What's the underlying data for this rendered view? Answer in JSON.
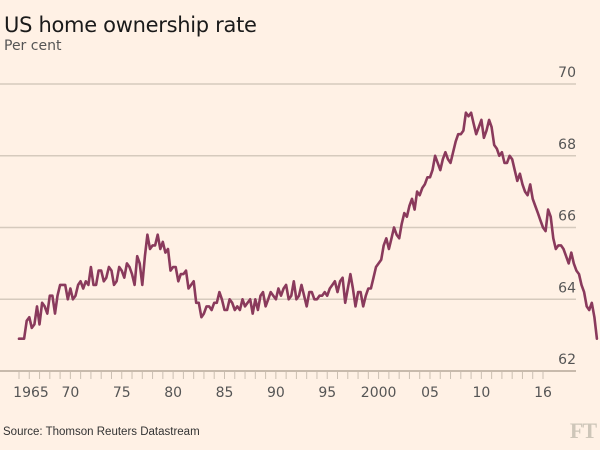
{
  "chart_data": {
    "type": "line",
    "title": "US home ownership rate",
    "subtitle": "Per cent",
    "xlabel": "",
    "ylabel": "Per cent",
    "ylim": [
      62,
      70
    ],
    "xlim": [
      1965,
      2016.5
    ],
    "grid": true,
    "y_ticks": [
      62,
      64,
      66,
      68,
      70
    ],
    "y_tick_labels": [
      "62",
      "64",
      "66",
      "68",
      "70"
    ],
    "x_tick_years": [
      1965,
      1970,
      1975,
      1980,
      1985,
      1990,
      1995,
      2000,
      2005,
      2010,
      2016
    ],
    "x_tick_labels": [
      "1965",
      "70",
      "75",
      "80",
      "85",
      "90",
      "95",
      "2000",
      "05",
      "10",
      "16"
    ],
    "color": "#8a3a5c",
    "series": [
      {
        "name": "US home ownership rate",
        "frequency": "quarterly",
        "start": 1965,
        "values": [
          62.9,
          62.9,
          62.9,
          63.4,
          63.5,
          63.2,
          63.3,
          63.8,
          63.3,
          63.9,
          63.8,
          63.6,
          64.1,
          64.1,
          63.6,
          64.1,
          64.4,
          64.4,
          64.4,
          64.0,
          64.3,
          64.0,
          64.1,
          64.4,
          64.5,
          64.3,
          64.5,
          64.4,
          64.9,
          64.4,
          64.4,
          64.8,
          64.8,
          64.5,
          64.6,
          64.9,
          64.8,
          64.4,
          64.5,
          64.9,
          64.8,
          64.6,
          65.0,
          64.9,
          64.7,
          64.4,
          65.2,
          65.0,
          64.4,
          65.2,
          65.8,
          65.4,
          65.5,
          65.5,
          65.8,
          65.4,
          65.6,
          65.3,
          65.4,
          64.8,
          64.9,
          64.9,
          64.5,
          64.7,
          64.7,
          64.8,
          64.3,
          64.4,
          64.5,
          63.9,
          63.9,
          63.5,
          63.6,
          63.8,
          63.8,
          63.7,
          63.9,
          63.9,
          64.2,
          64.0,
          63.7,
          63.7,
          64.0,
          63.9,
          63.7,
          63.8,
          63.7,
          64.0,
          63.8,
          63.9,
          64.0,
          63.6,
          64.0,
          63.7,
          64.1,
          64.2,
          63.8,
          64.0,
          64.2,
          64.1,
          64.0,
          64.3,
          64.1,
          64.3,
          64.4,
          64.0,
          64.1,
          64.5,
          64.0,
          64.1,
          64.4,
          64.1,
          63.8,
          64.2,
          64.2,
          64.0,
          64.0,
          64.1,
          64.1,
          64.2,
          64.1,
          64.3,
          64.4,
          64.5,
          64.2,
          64.5,
          64.6,
          63.9,
          64.3,
          64.7,
          64.3,
          63.8,
          64.2,
          64.2,
          63.8,
          64.1,
          64.3,
          64.3,
          64.6,
          64.9,
          65.0,
          65.1,
          65.5,
          65.7,
          65.4,
          65.7,
          66.0,
          65.8,
          65.7,
          66.1,
          66.4,
          66.3,
          66.6,
          66.8,
          66.5,
          67.0,
          66.9,
          67.1,
          67.2,
          67.4,
          67.4,
          67.6,
          68.0,
          67.8,
          67.6,
          67.9,
          68.1,
          67.9,
          67.8,
          68.1,
          68.4,
          68.6,
          68.6,
          68.7,
          69.2,
          69.1,
          69.2,
          68.9,
          68.6,
          68.8,
          69.0,
          68.5,
          68.7,
          69.0,
          68.8,
          68.3,
          68.2,
          68.0,
          68.1,
          67.8,
          67.8,
          68.0,
          67.9,
          67.6,
          67.3,
          67.5,
          67.2,
          67.0,
          66.9,
          67.2,
          66.8,
          66.6,
          66.4,
          66.2,
          66.0,
          65.9,
          66.5,
          66.3,
          65.7,
          65.4,
          65.5,
          65.5,
          65.4,
          65.2,
          65.0,
          65.3,
          65.0,
          64.8,
          64.7,
          64.4,
          64.2,
          63.8,
          63.7,
          63.9,
          63.5,
          62.9
        ]
      }
    ],
    "source": "Source: Thomson Reuters Datastream",
    "logo": "FT"
  }
}
